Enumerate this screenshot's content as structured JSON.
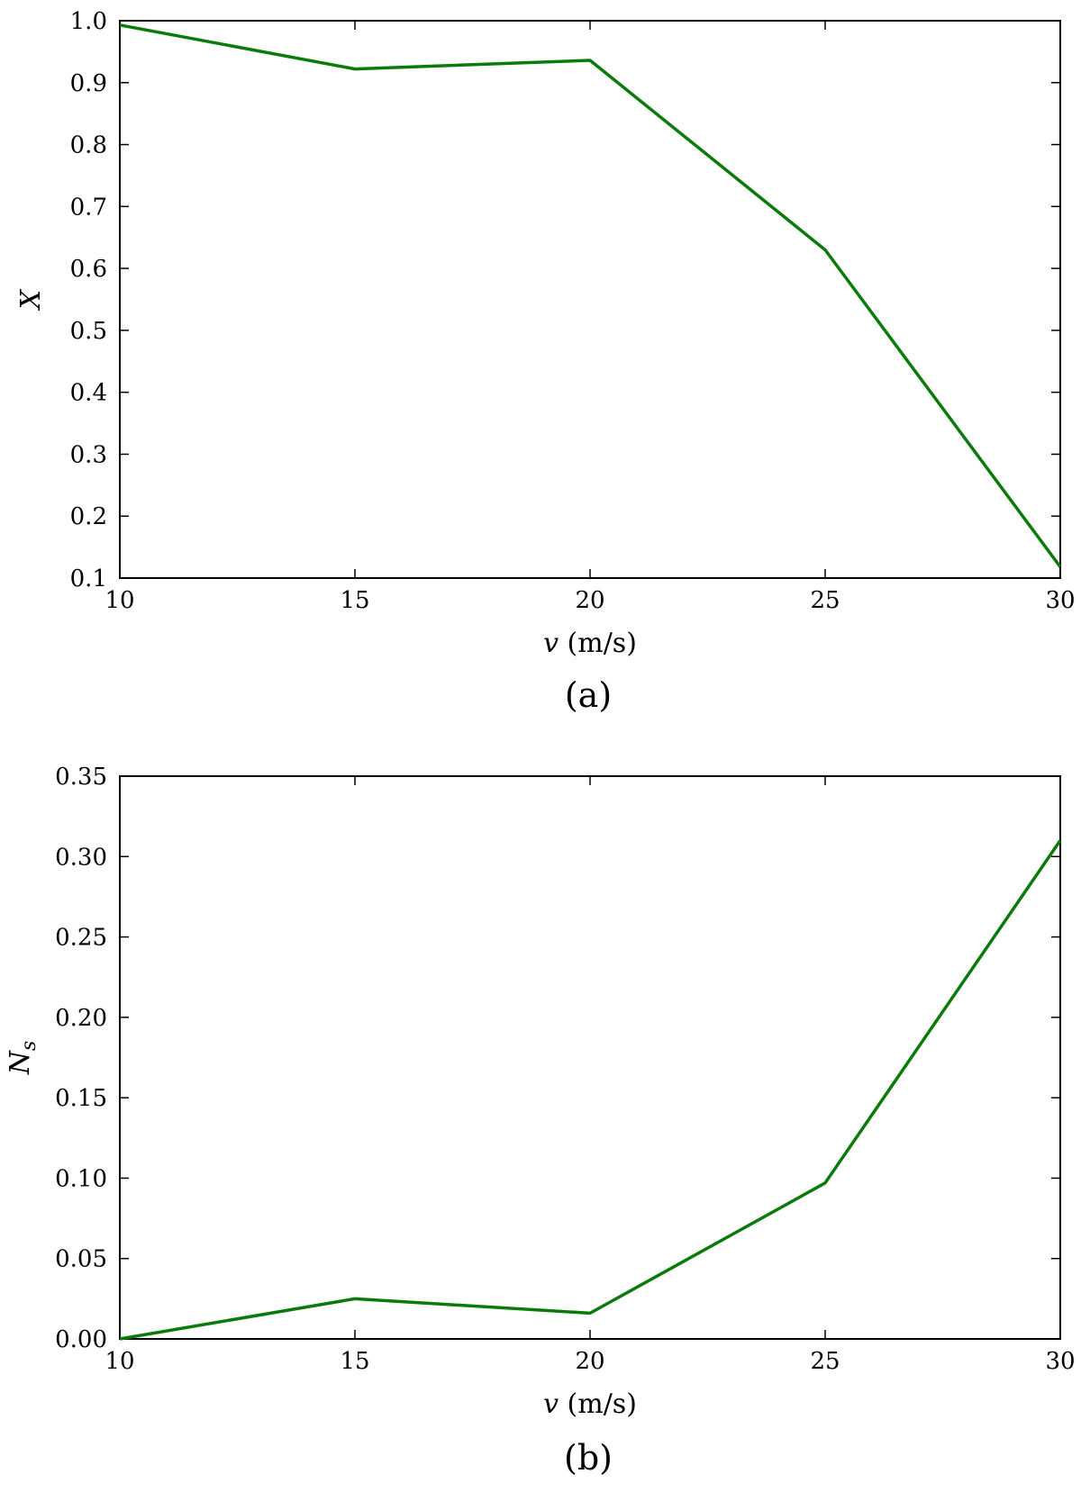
{
  "figure": {
    "panel_labels": [
      "(a)",
      "(b)"
    ]
  },
  "chart_data": [
    {
      "type": "line",
      "panel": "(a)",
      "xlabel": "v (m/s)",
      "ylabel": "X",
      "xlim": [
        10,
        30
      ],
      "ylim": [
        0.1,
        1.0
      ],
      "x_ticks": [
        "10",
        "15",
        "20",
        "25",
        "30"
      ],
      "y_ticks": [
        "0.1",
        "0.2",
        "0.3",
        "0.4",
        "0.5",
        "0.6",
        "0.7",
        "0.8",
        "0.9",
        "1.0"
      ],
      "x": [
        10,
        15,
        20,
        25,
        30
      ],
      "series": [
        {
          "values": [
            0.993,
            0.922,
            0.936,
            0.63,
            0.118
          ],
          "color": "#0a7a0a"
        }
      ],
      "grid": false,
      "legend": "none"
    },
    {
      "type": "line",
      "panel": "(b)",
      "xlabel": "v (m/s)",
      "ylabel": "N_s",
      "xlim": [
        10,
        30
      ],
      "ylim": [
        0.0,
        0.35
      ],
      "x_ticks": [
        "10",
        "15",
        "20",
        "25",
        "30"
      ],
      "y_ticks": [
        "0.00",
        "0.05",
        "0.10",
        "0.15",
        "0.20",
        "0.25",
        "0.30",
        "0.35"
      ],
      "x": [
        10,
        15,
        20,
        25,
        30
      ],
      "series": [
        {
          "values": [
            0.0,
            0.025,
            0.016,
            0.097,
            0.31
          ],
          "color": "#0a7a0a"
        }
      ],
      "grid": false,
      "legend": "none"
    }
  ]
}
